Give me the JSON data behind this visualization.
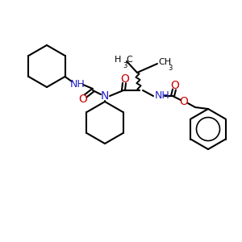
{
  "bg_color": "#ffffff",
  "bond_color": "#000000",
  "N_color": "#2222cc",
  "O_color": "#cc0000",
  "lw": 1.5,
  "fig_size": [
    3.0,
    3.0
  ],
  "dpi": 100,
  "xlim": [
    0,
    300
  ],
  "ylim": [
    0,
    300
  ]
}
